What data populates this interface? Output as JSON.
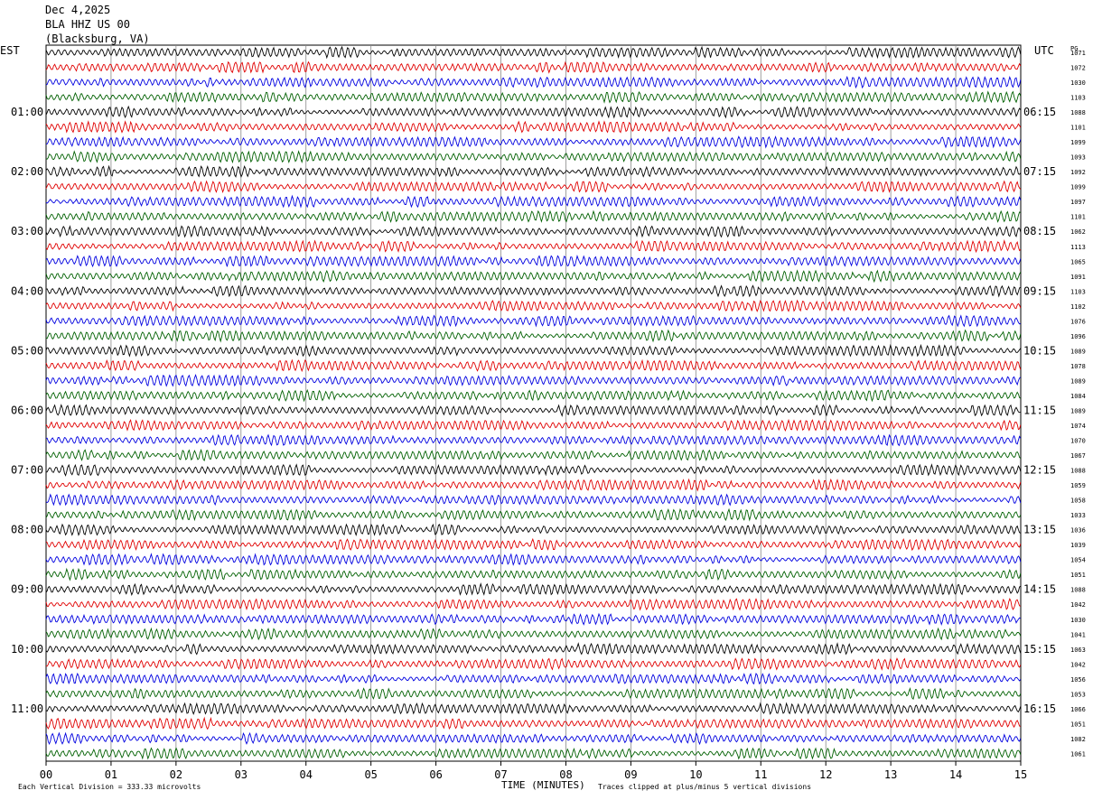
{
  "header": {
    "date": "Dec 4,2025",
    "station": "BLA HHZ US 00",
    "location": "(Blacksburg, VA)"
  },
  "left_timezone": "EST",
  "right_timezone": "UTC",
  "right_column_title": "PG",
  "footer": {
    "scale_note": "Each Vertical Division =  333.33 microvolts",
    "xlabel": "TIME (MINUTES)",
    "clip_note": "Traces clipped at plus/minus 5 vertical divisions"
  },
  "colors": {
    "trace_cycle": [
      "#000000",
      "#e00000",
      "#0000e0",
      "#006000"
    ],
    "grid": "#888888"
  },
  "chart_data": {
    "type": "line",
    "subtype": "helicorder",
    "xlabel": "TIME (MINUTES)",
    "x_range": [
      0,
      15
    ],
    "x_ticks": [
      "00",
      "01",
      "02",
      "03",
      "04",
      "05",
      "06",
      "07",
      "08",
      "09",
      "10",
      "11",
      "12",
      "13",
      "14",
      "15"
    ],
    "rows": 48,
    "row_minutes": 15,
    "left_hour_labels": [
      {
        "row": 4,
        "label": "01:00"
      },
      {
        "row": 8,
        "label": "02:00"
      },
      {
        "row": 12,
        "label": "03:00"
      },
      {
        "row": 16,
        "label": "04:00"
      },
      {
        "row": 20,
        "label": "05:00"
      },
      {
        "row": 24,
        "label": "06:00"
      },
      {
        "row": 28,
        "label": "07:00"
      },
      {
        "row": 32,
        "label": "08:00"
      },
      {
        "row": 36,
        "label": "09:00"
      },
      {
        "row": 40,
        "label": "10:00"
      },
      {
        "row": 44,
        "label": "11:00"
      }
    ],
    "right_hour_labels": [
      {
        "row": 4,
        "label": "06:15"
      },
      {
        "row": 8,
        "label": "07:15"
      },
      {
        "row": 12,
        "label": "08:15"
      },
      {
        "row": 16,
        "label": "09:15"
      },
      {
        "row": 20,
        "label": "10:15"
      },
      {
        "row": 24,
        "label": "11:15"
      },
      {
        "row": 28,
        "label": "12:15"
      },
      {
        "row": 32,
        "label": "13:15"
      },
      {
        "row": 36,
        "label": "14:15"
      },
      {
        "row": 40,
        "label": "15:15"
      },
      {
        "row": 44,
        "label": "16:15"
      }
    ],
    "row_values": [
      "1071",
      "1072",
      "1030",
      "1103",
      "1088",
      "1101",
      "1099",
      "1093",
      "1092",
      "1099",
      "1097",
      "1101",
      "1062",
      "1113",
      "1065",
      "1091",
      "1103",
      "1102",
      "1076",
      "1096",
      "1089",
      "1078",
      "1089",
      "1084",
      "1089",
      "1074",
      "1070",
      "1067",
      "1088",
      "1059",
      "1058",
      "1033",
      "1036",
      "1039",
      "1054",
      "1051",
      "1088",
      "1042",
      "1030",
      "1041",
      "1063",
      "1042",
      "1056",
      "1053",
      "1066",
      "1051",
      "1082",
      "1061"
    ],
    "series": [
      {
        "name": "black",
        "rows": [
          0,
          4,
          8,
          12,
          16,
          20,
          24,
          28,
          32,
          36,
          40,
          44
        ]
      },
      {
        "name": "red",
        "rows": [
          1,
          5,
          9,
          13,
          17,
          21,
          25,
          29,
          33,
          37,
          41,
          45
        ]
      },
      {
        "name": "blue",
        "rows": [
          2,
          6,
          10,
          14,
          18,
          22,
          26,
          30,
          34,
          38,
          42,
          46
        ]
      },
      {
        "name": "green",
        "rows": [
          3,
          7,
          11,
          15,
          19,
          23,
          27,
          31,
          35,
          39,
          43,
          47
        ]
      }
    ],
    "grid": true
  }
}
